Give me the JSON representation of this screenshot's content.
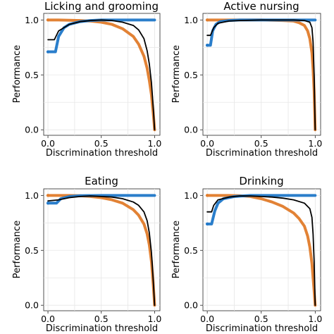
{
  "chart_data": [
    {
      "type": "line",
      "title": "Licking and grooming",
      "xlabel": "Discrimination threshold",
      "ylabel": "Performance",
      "xlim": [
        -0.04,
        1.05
      ],
      "ylim": [
        -0.05,
        1.06
      ],
      "xticks": [
        "0.0",
        "0.5",
        "1.0"
      ],
      "yticks": [
        "0.0",
        "0.5",
        "1.0"
      ],
      "grid": true,
      "series": [
        {
          "color": "#e07b2a",
          "x": [
            0.0,
            0.06,
            0.1,
            0.2,
            0.3,
            0.4,
            0.5,
            0.6,
            0.7,
            0.8,
            0.85,
            0.9,
            0.93,
            0.95,
            0.97,
            0.98,
            0.99,
            1.0
          ],
          "y": [
            1.0,
            1.0,
            1.0,
            0.998,
            0.995,
            0.99,
            0.98,
            0.96,
            0.92,
            0.85,
            0.78,
            0.67,
            0.56,
            0.45,
            0.32,
            0.22,
            0.12,
            0.0
          ]
        },
        {
          "color": "#1f77c8",
          "x": [
            0.0,
            0.07,
            0.1,
            0.15,
            0.2,
            0.3,
            0.4,
            0.5,
            0.6,
            0.8,
            1.0
          ],
          "y": [
            0.71,
            0.71,
            0.85,
            0.93,
            0.96,
            0.985,
            0.995,
            1.0,
            1.0,
            1.0,
            1.0
          ]
        },
        {
          "color": "#000000",
          "x": [
            0.0,
            0.06,
            0.1,
            0.2,
            0.3,
            0.4,
            0.5,
            0.6,
            0.7,
            0.8,
            0.85,
            0.9,
            0.93,
            0.95,
            0.97,
            0.98,
            0.99,
            1.0
          ],
          "y": [
            0.82,
            0.82,
            0.9,
            0.96,
            0.985,
            0.995,
            1.0,
            0.995,
            0.98,
            0.95,
            0.91,
            0.83,
            0.72,
            0.6,
            0.43,
            0.3,
            0.16,
            0.0
          ]
        }
      ]
    },
    {
      "type": "line",
      "title": "Active nursing",
      "xlabel": "Discrimination threshold",
      "ylabel": "Performance",
      "xlim": [
        -0.04,
        1.05
      ],
      "ylim": [
        -0.05,
        1.06
      ],
      "xticks": [
        "0.0",
        "0.5",
        "1.0"
      ],
      "yticks": [
        "0.0",
        "0.5",
        "1.0"
      ],
      "grid": true,
      "series": [
        {
          "color": "#e07b2a",
          "x": [
            0.0,
            0.03,
            0.1,
            0.3,
            0.5,
            0.7,
            0.8,
            0.85,
            0.9,
            0.93,
            0.95,
            0.97,
            0.98,
            0.99,
            1.0
          ],
          "y": [
            1.0,
            1.0,
            1.0,
            1.0,
            1.0,
            0.995,
            0.99,
            0.975,
            0.95,
            0.9,
            0.83,
            0.7,
            0.55,
            0.35,
            0.0
          ]
        },
        {
          "color": "#1f77c8",
          "x": [
            0.0,
            0.03,
            0.05,
            0.08,
            0.12,
            0.2,
            0.3,
            0.5,
            0.8,
            1.0
          ],
          "y": [
            0.77,
            0.77,
            0.9,
            0.96,
            0.985,
            0.995,
            1.0,
            1.0,
            1.0,
            1.0
          ]
        },
        {
          "color": "#000000",
          "x": [
            0.0,
            0.03,
            0.06,
            0.1,
            0.2,
            0.3,
            0.5,
            0.7,
            0.8,
            0.9,
            0.95,
            0.97,
            0.98,
            0.99,
            1.0
          ],
          "y": [
            0.86,
            0.86,
            0.93,
            0.97,
            0.99,
            0.995,
            1.0,
            1.0,
            1.0,
            0.995,
            0.98,
            0.93,
            0.8,
            0.5,
            0.0
          ]
        }
      ]
    },
    {
      "type": "line",
      "title": "Eating",
      "xlabel": "Discrimination threshold",
      "ylabel": "Performance",
      "xlim": [
        -0.04,
        1.05
      ],
      "ylim": [
        -0.05,
        1.06
      ],
      "xticks": [
        "0.0",
        "0.5",
        "1.0"
      ],
      "yticks": [
        "0.0",
        "0.5",
        "1.0"
      ],
      "grid": true,
      "series": [
        {
          "color": "#e07b2a",
          "x": [
            0.0,
            0.1,
            0.2,
            0.3,
            0.4,
            0.5,
            0.6,
            0.7,
            0.8,
            0.85,
            0.9,
            0.93,
            0.95,
            0.97,
            0.98,
            0.99,
            1.0
          ],
          "y": [
            1.0,
            1.0,
            1.0,
            0.998,
            0.99,
            0.98,
            0.96,
            0.93,
            0.87,
            0.82,
            0.74,
            0.65,
            0.55,
            0.4,
            0.28,
            0.15,
            0.0
          ]
        },
        {
          "color": "#1f77c8",
          "x": [
            0.0,
            0.08,
            0.12,
            0.2,
            0.3,
            0.5,
            0.8,
            1.0
          ],
          "y": [
            0.93,
            0.93,
            0.97,
            0.99,
            0.998,
            1.0,
            1.0,
            1.0
          ]
        },
        {
          "color": "#000000",
          "x": [
            0.0,
            0.1,
            0.2,
            0.3,
            0.4,
            0.5,
            0.6,
            0.7,
            0.8,
            0.85,
            0.9,
            0.93,
            0.95,
            0.97,
            0.98,
            0.99,
            1.0
          ],
          "y": [
            0.95,
            0.96,
            0.98,
            0.99,
            0.995,
            0.99,
            0.985,
            0.97,
            0.94,
            0.91,
            0.85,
            0.77,
            0.66,
            0.48,
            0.34,
            0.18,
            0.0
          ]
        }
      ]
    },
    {
      "type": "line",
      "title": "Drinking",
      "xlabel": "Discrimination threshold",
      "ylabel": "Performance",
      "xlim": [
        -0.04,
        1.05
      ],
      "ylim": [
        -0.05,
        1.06
      ],
      "xticks": [
        "0.0",
        "0.5",
        "1.0"
      ],
      "yticks": [
        "0.0",
        "0.5",
        "1.0"
      ],
      "grid": true,
      "series": [
        {
          "color": "#e07b2a",
          "x": [
            0.0,
            0.05,
            0.1,
            0.2,
            0.3,
            0.4,
            0.5,
            0.6,
            0.7,
            0.8,
            0.85,
            0.9,
            0.93,
            0.95,
            0.97,
            0.98,
            0.99,
            1.0
          ],
          "y": [
            1.0,
            1.0,
            1.0,
            1.0,
            0.998,
            0.99,
            0.97,
            0.94,
            0.9,
            0.84,
            0.79,
            0.72,
            0.63,
            0.53,
            0.38,
            0.25,
            0.13,
            0.0
          ]
        },
        {
          "color": "#1f77c8",
          "x": [
            0.0,
            0.04,
            0.07,
            0.1,
            0.15,
            0.25,
            0.4,
            0.6,
            0.8,
            1.0
          ],
          "y": [
            0.74,
            0.74,
            0.86,
            0.93,
            0.97,
            0.99,
            1.0,
            1.0,
            1.0,
            1.0
          ]
        },
        {
          "color": "#000000",
          "x": [
            0.0,
            0.04,
            0.06,
            0.1,
            0.2,
            0.3,
            0.4,
            0.5,
            0.6,
            0.7,
            0.8,
            0.9,
            0.95,
            0.97,
            0.98,
            0.99,
            1.0
          ],
          "y": [
            0.85,
            0.85,
            0.91,
            0.96,
            0.985,
            0.995,
            0.995,
            0.99,
            0.985,
            0.975,
            0.96,
            0.93,
            0.88,
            0.8,
            0.65,
            0.4,
            0.0
          ]
        }
      ]
    }
  ]
}
